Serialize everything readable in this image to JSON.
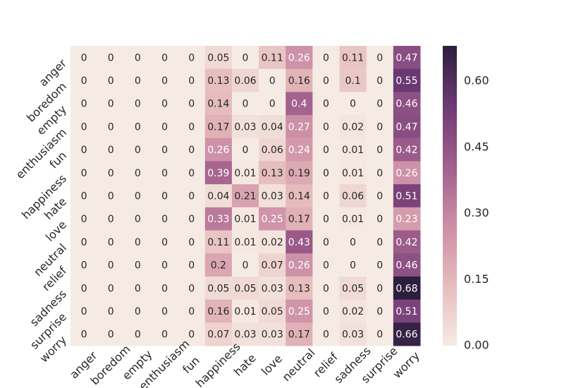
{
  "chart_data": {
    "type": "heatmap",
    "x": [
      "anger",
      "boredom",
      "empty",
      "enthusiasm",
      "fun",
      "happiness",
      "hate",
      "love",
      "neutral",
      "relief",
      "sadness",
      "surprise",
      "worry"
    ],
    "y": [
      "anger",
      "boredom",
      "empty",
      "enthusiasm",
      "fun",
      "happiness",
      "hate",
      "love",
      "neutral",
      "relief",
      "sadness",
      "surprise",
      "worry"
    ],
    "values": [
      [
        0,
        0,
        0,
        0,
        0,
        0.05,
        0,
        0.11,
        0.26,
        0,
        0.11,
        0,
        0.47
      ],
      [
        0,
        0,
        0,
        0,
        0,
        0.13,
        0.06,
        0,
        0.16,
        0,
        0.1,
        0,
        0.55
      ],
      [
        0,
        0,
        0,
        0,
        0,
        0.14,
        0,
        0,
        0.4,
        0,
        0,
        0,
        0.46
      ],
      [
        0,
        0,
        0,
        0,
        0,
        0.17,
        0.03,
        0.04,
        0.27,
        0,
        0.02,
        0,
        0.47
      ],
      [
        0,
        0,
        0,
        0,
        0,
        0.26,
        0,
        0.06,
        0.24,
        0,
        0.01,
        0,
        0.42
      ],
      [
        0,
        0,
        0,
        0,
        0,
        0.39,
        0.01,
        0.13,
        0.19,
        0,
        0.01,
        0,
        0.26
      ],
      [
        0,
        0,
        0,
        0,
        0,
        0.04,
        0.21,
        0.03,
        0.14,
        0,
        0.06,
        0,
        0.51
      ],
      [
        0,
        0,
        0,
        0,
        0,
        0.33,
        0.01,
        0.25,
        0.17,
        0,
        0.01,
        0,
        0.23
      ],
      [
        0,
        0,
        0,
        0,
        0,
        0.11,
        0.01,
        0.02,
        0.43,
        0,
        0,
        0,
        0.42
      ],
      [
        0,
        0,
        0,
        0,
        0,
        0.2,
        0,
        0.07,
        0.26,
        0,
        0,
        0,
        0.46
      ],
      [
        0,
        0,
        0,
        0,
        0,
        0.05,
        0.05,
        0.03,
        0.13,
        0,
        0.05,
        0,
        0.68
      ],
      [
        0,
        0,
        0,
        0,
        0,
        0.16,
        0.01,
        0.05,
        0.25,
        0,
        0.02,
        0,
        0.51
      ],
      [
        0,
        0,
        0,
        0,
        0,
        0.07,
        0.03,
        0.03,
        0.17,
        0,
        0.03,
        0,
        0.66
      ]
    ],
    "clim": [
      0,
      0.68
    ],
    "colormap": [
      "#f6ebe4",
      "#e6bcbc",
      "#cc8ea6",
      "#a15f8d",
      "#6d3a73",
      "#2c1e3d"
    ],
    "cticks": [
      {
        "value": 0,
        "label": "0.00"
      },
      {
        "value": 0.15,
        "label": "0.15"
      },
      {
        "value": 0.3,
        "label": "0.30"
      },
      {
        "value": 0.45,
        "label": "0.45"
      },
      {
        "value": 0.6,
        "label": "0.60"
      }
    ]
  }
}
